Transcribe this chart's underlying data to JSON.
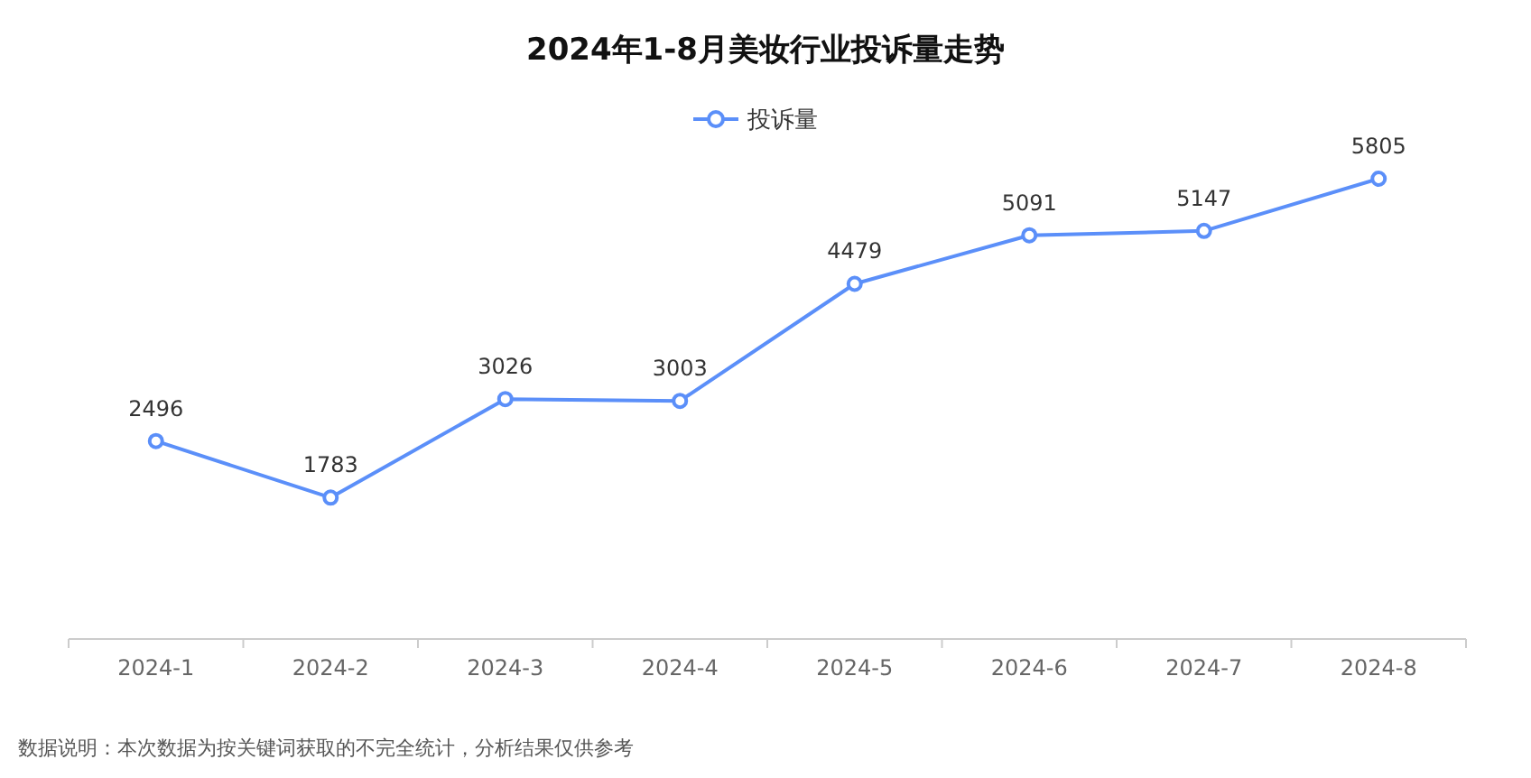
{
  "chart_data": {
    "type": "line",
    "title": "2024年1-8月美妆行业投诉量走势",
    "categories": [
      "2024-1",
      "2024-2",
      "2024-3",
      "2024-4",
      "2024-5",
      "2024-6",
      "2024-7",
      "2024-8"
    ],
    "series": [
      {
        "name": "投诉量",
        "color": "#5b8ff9",
        "values": [
          2496,
          1783,
          3026,
          3003,
          4479,
          5091,
          5147,
          5805
        ]
      }
    ],
    "data_labels": true,
    "marker": "circle",
    "legend": "top",
    "annotations": [
      "数据说明：本次数据为按关键词获取的不完全统计，分析结果仅供参考"
    ]
  }
}
